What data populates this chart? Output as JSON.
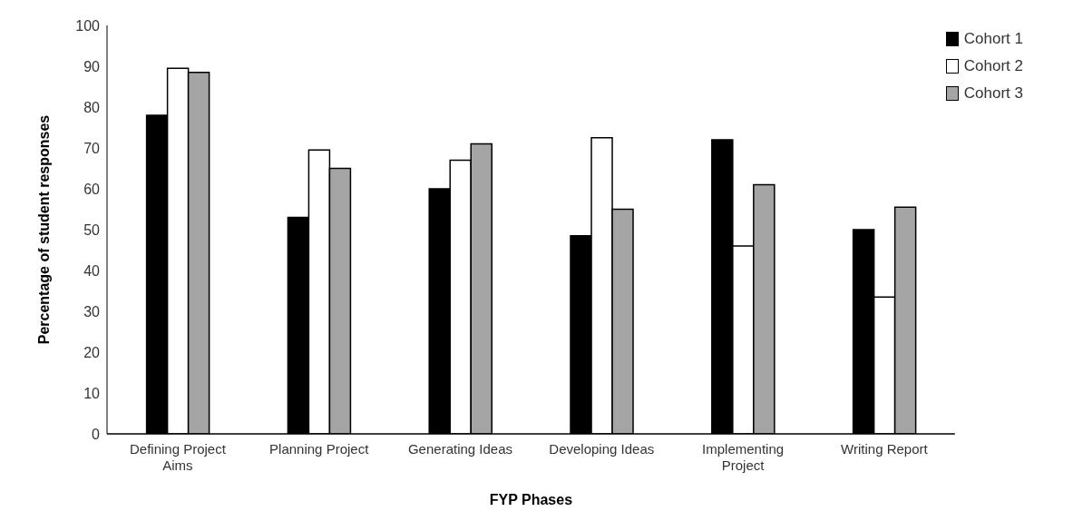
{
  "chart_data": {
    "type": "bar",
    "xlabel": "FYP Phases",
    "ylabel": "Percentage of student responses",
    "categories": [
      "Defining Project Aims",
      "Planning Project",
      "Generating Ideas",
      "Developing Ideas",
      "Implementing Project",
      "Writing Report"
    ],
    "series": [
      {
        "name": "Cohort 1",
        "color": "#000000",
        "values": [
          78,
          53,
          60,
          48.5,
          72,
          50
        ]
      },
      {
        "name": "Cohort 2",
        "color": "#ffffff",
        "values": [
          89.5,
          69.5,
          67,
          72.5,
          46,
          33.5
        ]
      },
      {
        "name": "Cohort 3",
        "color": "#a5a5a5",
        "values": [
          88.5,
          65,
          71,
          55,
          61,
          55.5
        ]
      }
    ],
    "ylim": [
      0,
      100
    ],
    "yticks": [
      0,
      10,
      20,
      30,
      40,
      50,
      60,
      70,
      80,
      90,
      100
    ],
    "grid": false,
    "legend": "top right"
  }
}
